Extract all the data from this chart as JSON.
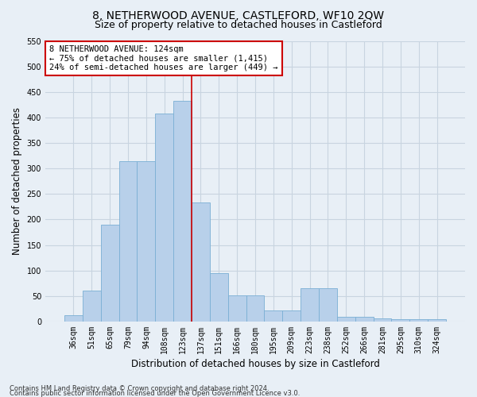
{
  "title": "8, NETHERWOOD AVENUE, CASTLEFORD, WF10 2QW",
  "subtitle": "Size of property relative to detached houses in Castleford",
  "xlabel": "Distribution of detached houses by size in Castleford",
  "ylabel": "Number of detached properties",
  "categories": [
    "36sqm",
    "51sqm",
    "65sqm",
    "79sqm",
    "94sqm",
    "108sqm",
    "123sqm",
    "137sqm",
    "151sqm",
    "166sqm",
    "180sqm",
    "195sqm",
    "209sqm",
    "223sqm",
    "238sqm",
    "252sqm",
    "266sqm",
    "281sqm",
    "295sqm",
    "310sqm",
    "324sqm"
  ],
  "values": [
    12,
    60,
    190,
    315,
    315,
    407,
    433,
    233,
    95,
    52,
    52,
    22,
    22,
    65,
    65,
    10,
    10,
    6,
    4,
    4,
    5
  ],
  "bar_color": "#b8d0ea",
  "bar_edge_color": "#7aafd4",
  "grid_color": "#c8d4e0",
  "background_color": "#e8eff6",
  "vline_x_index": 6,
  "vline_color": "#cc0000",
  "annotation_text": "8 NETHERWOOD AVENUE: 124sqm\n← 75% of detached houses are smaller (1,415)\n24% of semi-detached houses are larger (449) →",
  "annotation_box_color": "#ffffff",
  "annotation_box_edge": "#cc0000",
  "ylim": [
    0,
    550
  ],
  "yticks": [
    0,
    50,
    100,
    150,
    200,
    250,
    300,
    350,
    400,
    450,
    500,
    550
  ],
  "footer1": "Contains HM Land Registry data © Crown copyright and database right 2024.",
  "footer2": "Contains public sector information licensed under the Open Government Licence v3.0.",
  "title_fontsize": 10,
  "subtitle_fontsize": 9,
  "tick_fontsize": 7,
  "ylabel_fontsize": 8.5,
  "xlabel_fontsize": 8.5,
  "annot_fontsize": 7.5,
  "footer_fontsize": 6
}
